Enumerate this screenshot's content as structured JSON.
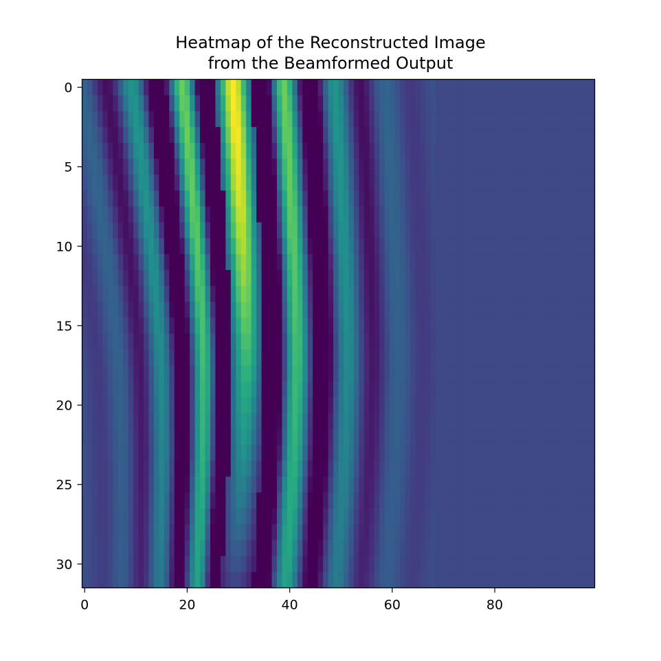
{
  "chart_data": {
    "type": "heatmap",
    "title_lines": [
      "Heatmap of the Reconstructed Image",
      "from the Beamformed Output"
    ],
    "xlabel": "",
    "ylabel": "",
    "n_rows": 32,
    "n_cols": 100,
    "x_ticks": [
      0,
      20,
      40,
      60,
      80
    ],
    "y_ticks": [
      0,
      5,
      10,
      15,
      20,
      25,
      30
    ],
    "y_axis_inverted": true,
    "colormap": "viridis",
    "grid": false,
    "colorbar": false,
    "value_range": [
      -1,
      1
    ],
    "main_lobe_center_by_row": [
      29,
      29.2,
      29.4,
      29.6,
      29.8,
      30,
      30.1,
      30.3,
      30.5,
      30.6,
      30.8,
      31,
      31.1,
      31.2,
      31.3,
      31.4,
      31.5,
      31.5,
      31.5,
      31.4,
      31.3,
      31.2,
      31.1,
      31,
      30.8,
      30.6,
      30.4,
      30.2,
      30,
      29.8,
      29.6,
      29.4
    ],
    "main_lobe_peak_by_row": [
      1.0,
      1.0,
      1.0,
      1.0,
      0.98,
      0.97,
      0.96,
      0.95,
      0.93,
      0.91,
      0.89,
      0.86,
      0.84,
      0.81,
      0.78,
      0.75,
      0.72,
      0.69,
      0.66,
      0.63,
      0.6,
      0.57,
      0.54,
      0.51,
      0.48,
      0.45,
      0.42,
      0.38,
      0.35,
      0.31,
      0.27,
      0.22
    ],
    "sidelobe_period": 10,
    "background_level": -0.55
  }
}
